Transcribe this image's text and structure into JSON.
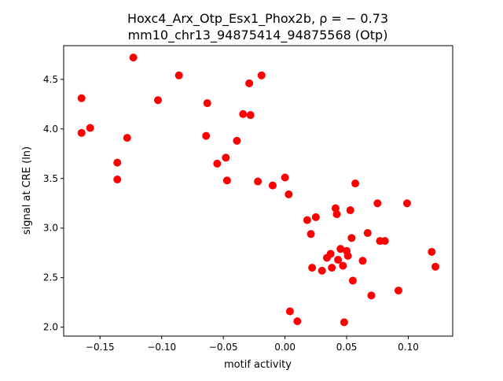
{
  "chart_data": {
    "type": "scatter",
    "title_line1": "Hoxc4_Arx_Otp_Esx1_Phox2b, ρ = − 0.73",
    "title_line2": "mm10_chr13_94875414_94875568 (Otp)",
    "xlabel": "motif activity",
    "ylabel": "signal at CRE (ln)",
    "xlim": [
      -0.1795,
      0.136
    ],
    "ylim": [
      1.91,
      4.84
    ],
    "xticks": [
      -0.15,
      -0.1,
      -0.05,
      0.0,
      0.05,
      0.1
    ],
    "xtick_labels": [
      "−0.15",
      "−0.10",
      "−0.05",
      "0.00",
      "0.05",
      "0.10"
    ],
    "yticks": [
      2.0,
      2.5,
      3.0,
      3.5,
      4.0,
      4.5
    ],
    "ytick_labels": [
      "2.0",
      "2.5",
      "3.0",
      "3.5",
      "4.0",
      "4.5"
    ],
    "grid": false,
    "marker_color": "#ff0000",
    "points": [
      [
        -0.165,
        4.31
      ],
      [
        -0.165,
        3.96
      ],
      [
        -0.158,
        4.01
      ],
      [
        -0.123,
        4.72
      ],
      [
        -0.136,
        3.66
      ],
      [
        -0.136,
        3.49
      ],
      [
        -0.128,
        3.91
      ],
      [
        -0.103,
        4.29
      ],
      [
        -0.086,
        4.54
      ],
      [
        -0.063,
        4.26
      ],
      [
        -0.064,
        3.93
      ],
      [
        -0.055,
        3.65
      ],
      [
        -0.048,
        3.71
      ],
      [
        -0.047,
        3.48
      ],
      [
        -0.039,
        3.88
      ],
      [
        -0.034,
        4.15
      ],
      [
        -0.028,
        4.14
      ],
      [
        -0.029,
        4.46
      ],
      [
        -0.019,
        4.54
      ],
      [
        -0.022,
        3.47
      ],
      [
        -0.01,
        3.43
      ],
      [
        0.0,
        3.51
      ],
      [
        0.003,
        3.34
      ],
      [
        0.004,
        2.16
      ],
      [
        0.01,
        2.06
      ],
      [
        0.018,
        3.08
      ],
      [
        0.021,
        2.94
      ],
      [
        0.022,
        2.6
      ],
      [
        0.025,
        3.11
      ],
      [
        0.03,
        2.57
      ],
      [
        0.034,
        2.7
      ],
      [
        0.037,
        2.74
      ],
      [
        0.038,
        2.6
      ],
      [
        0.041,
        3.2
      ],
      [
        0.042,
        3.14
      ],
      [
        0.043,
        2.68
      ],
      [
        0.045,
        2.79
      ],
      [
        0.047,
        2.62
      ],
      [
        0.05,
        2.77
      ],
      [
        0.051,
        2.72
      ],
      [
        0.048,
        2.05
      ],
      [
        0.053,
        3.18
      ],
      [
        0.054,
        2.9
      ],
      [
        0.055,
        2.47
      ],
      [
        0.057,
        3.45
      ],
      [
        0.063,
        2.67
      ],
      [
        0.067,
        2.95
      ],
      [
        0.07,
        2.32
      ],
      [
        0.075,
        3.25
      ],
      [
        0.077,
        2.87
      ],
      [
        0.081,
        2.87
      ],
      [
        0.092,
        2.37
      ],
      [
        0.099,
        3.25
      ],
      [
        0.119,
        2.76
      ],
      [
        0.122,
        2.61
      ]
    ]
  }
}
